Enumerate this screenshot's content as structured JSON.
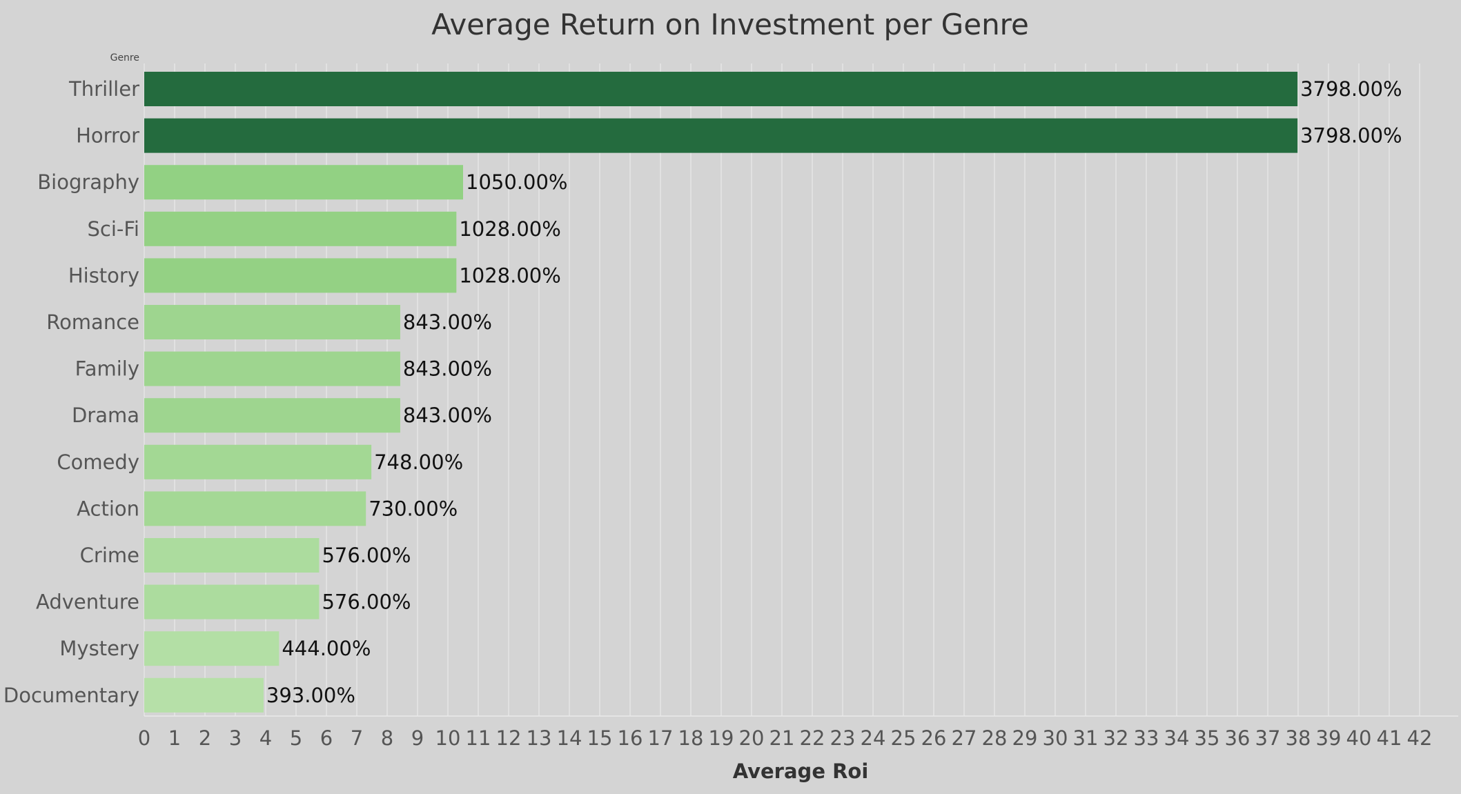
{
  "chart_data": {
    "type": "bar",
    "orientation": "horizontal",
    "title": "Average Return on Investment per Genre",
    "category_header": "Genre",
    "xlabel": "Average Roi",
    "ylabel": "",
    "xlim": [
      0,
      42
    ],
    "x_ticks": [
      0,
      1,
      2,
      3,
      4,
      5,
      6,
      7,
      8,
      9,
      10,
      11,
      12,
      13,
      14,
      15,
      16,
      17,
      18,
      19,
      20,
      21,
      22,
      23,
      24,
      25,
      26,
      27,
      28,
      29,
      30,
      31,
      32,
      33,
      34,
      35,
      36,
      37,
      38,
      39,
      40,
      41,
      42
    ],
    "grid": "vertical",
    "categories": [
      "Thriller",
      "Horror",
      "Biography",
      "Sci-Fi",
      "History",
      "Romance",
      "Family",
      "Drama",
      "Comedy",
      "Action",
      "Crime",
      "Adventure",
      "Mystery",
      "Documentary"
    ],
    "values": [
      37.98,
      37.98,
      10.5,
      10.28,
      10.28,
      8.43,
      8.43,
      8.43,
      7.48,
      7.3,
      5.76,
      5.76,
      4.44,
      3.93
    ],
    "data_labels": [
      "3798.00%",
      "3798.00%",
      "1050.00%",
      "1028.00%",
      "1028.00%",
      "843.00%",
      "843.00%",
      "843.00%",
      "748.00%",
      "730.00%",
      "576.00%",
      "576.00%",
      "444.00%",
      "393.00%"
    ],
    "colors": {
      "background": "#d4d4d4",
      "gridline": "#eaeaea",
      "bar_color_scale": [
        "#b6e0a8",
        "#88cc78",
        "#246b3e"
      ]
    }
  }
}
